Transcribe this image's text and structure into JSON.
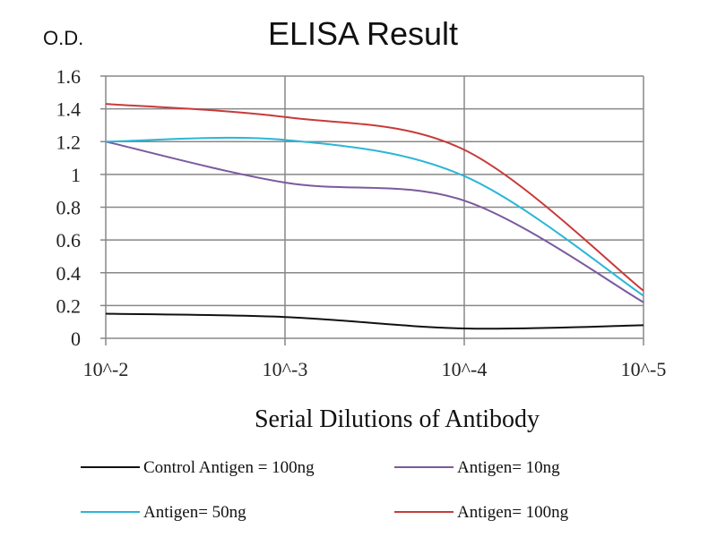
{
  "chart_data": {
    "type": "line",
    "title": "ELISA Result",
    "ylabel": "O.D.",
    "xlabel": "Serial Dilutions of Antibody",
    "categories": [
      "10^-2",
      "10^-3",
      "10^-4",
      "10^-5"
    ],
    "ylim": [
      0,
      1.6
    ],
    "yticks": [
      "0",
      "0.2",
      "0.4",
      "0.6",
      "0.8",
      "1",
      "1.2",
      "1.4",
      "1.6"
    ],
    "grid": true,
    "legend_position": "bottom",
    "series": [
      {
        "name": "Control Antigen = 100ng",
        "color": "#111111",
        "values": [
          0.15,
          0.13,
          0.06,
          0.08
        ]
      },
      {
        "name": "Antigen= 10ng",
        "color": "#7a5a9e",
        "values": [
          1.2,
          0.95,
          0.84,
          0.22
        ]
      },
      {
        "name": "Antigen= 50ng",
        "color": "#2bb6d6",
        "values": [
          1.2,
          1.21,
          0.99,
          0.26
        ]
      },
      {
        "name": "Antigen= 100ng",
        "color": "#c83a3a",
        "values": [
          1.43,
          1.35,
          1.15,
          0.29
        ]
      }
    ]
  }
}
